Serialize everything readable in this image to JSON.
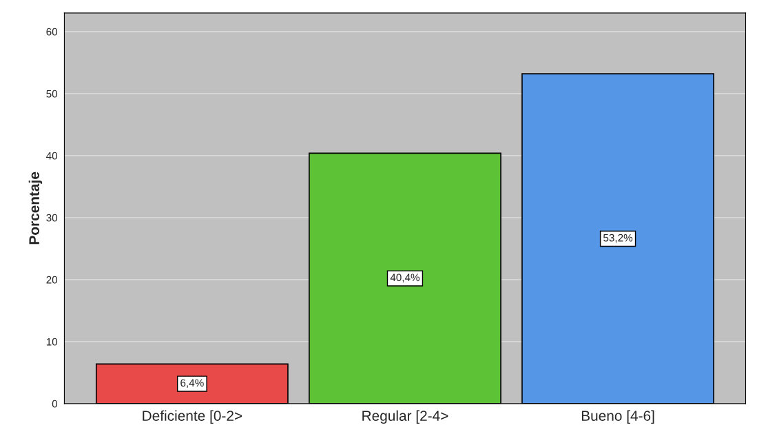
{
  "chart_data": {
    "type": "bar",
    "ylabel": "Porcentaje",
    "categories": [
      "Deficiente [0-2>",
      "Regular [2-4>",
      "Bueno [4-6]"
    ],
    "values": [
      6.4,
      40.4,
      53.2
    ],
    "colors": [
      "#e84a4a",
      "#5dc236",
      "#5596e6"
    ],
    "value_labels": [
      "6,4%",
      "40,4%",
      "53,2%"
    ],
    "ylim": [
      0,
      63
    ],
    "yticks": [
      0,
      10,
      20,
      30,
      40,
      50,
      60
    ],
    "grid": "y",
    "legend": false
  }
}
